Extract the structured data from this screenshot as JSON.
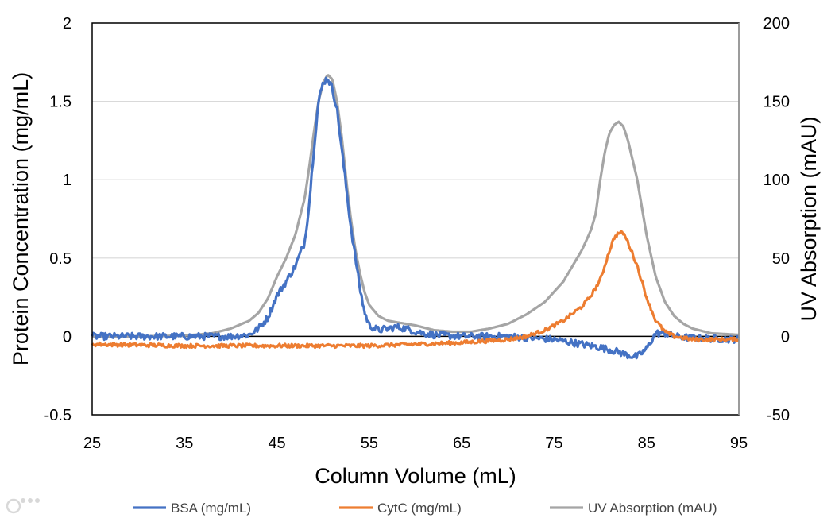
{
  "chart_data": {
    "type": "line",
    "title": "",
    "xlabel": "Column Volume (mL)",
    "ylabel_left": "Protein Concentration (mg/mL)",
    "ylabel_right": "UV Absorption (mAU)",
    "xlim": [
      25,
      95
    ],
    "ylim_left": [
      -0.5,
      2
    ],
    "ylim_right": [
      -50,
      200
    ],
    "x_ticks": [
      "25",
      "35",
      "45",
      "55",
      "65",
      "75",
      "85",
      "95"
    ],
    "y_ticks_left": [
      "2",
      "1.5",
      "1",
      "0.5",
      "0",
      "-0.5"
    ],
    "y_ticks_right": [
      "200",
      "150",
      "100",
      "50",
      "0",
      "-50"
    ],
    "grid": true,
    "legend_position": "bottom",
    "series": [
      {
        "name": "BSA (mg/mL)",
        "axis": "left",
        "color": "#4472C4",
        "x": [
          25,
          30,
          35,
          38,
          40,
          42,
          43,
          44,
          45,
          46,
          47,
          48,
          48.5,
          49,
          49.5,
          50,
          50.5,
          51,
          51.5,
          52,
          52.5,
          53,
          53.5,
          54,
          54.5,
          55,
          56,
          57,
          58,
          59,
          60,
          62,
          65,
          70,
          75,
          78,
          80,
          82,
          83,
          84,
          85,
          86,
          87,
          88,
          90,
          95
        ],
        "values": [
          0,
          0,
          0,
          0,
          0,
          0.01,
          0.05,
          0.12,
          0.26,
          0.35,
          0.45,
          0.6,
          0.85,
          1.2,
          1.5,
          1.62,
          1.65,
          1.58,
          1.45,
          1.2,
          0.95,
          0.7,
          0.5,
          0.3,
          0.15,
          0.07,
          0.04,
          0.05,
          0.06,
          0.05,
          0.03,
          0.01,
          0,
          0,
          -0.02,
          -0.05,
          -0.07,
          -0.1,
          -0.12,
          -0.13,
          -0.08,
          0.02,
          0.02,
          0,
          -0.01,
          -0.02
        ]
      },
      {
        "name": "CytC (mg/mL)",
        "axis": "left",
        "color": "#ED7D31",
        "x": [
          25,
          35,
          45,
          55,
          60,
          65,
          70,
          72,
          74,
          76,
          78,
          79,
          80,
          81,
          81.5,
          82,
          82.5,
          83,
          84,
          85,
          86,
          87,
          88,
          89,
          90,
          92,
          95
        ],
        "values": [
          -0.05,
          -0.06,
          -0.06,
          -0.06,
          -0.05,
          -0.04,
          -0.02,
          0,
          0.04,
          0.1,
          0.19,
          0.26,
          0.36,
          0.55,
          0.63,
          0.66,
          0.66,
          0.6,
          0.45,
          0.25,
          0.1,
          0.03,
          0,
          -0.01,
          -0.02,
          -0.02,
          -0.02
        ]
      },
      {
        "name": "UV Absorption (mAU)",
        "axis": "right",
        "color": "#A5A5A5",
        "x": [
          25,
          30,
          35,
          38,
          40,
          42,
          43,
          44,
          45,
          46,
          47,
          48,
          48.5,
          49,
          49.5,
          50,
          50.5,
          51,
          51.5,
          52,
          52.5,
          53,
          53.5,
          54,
          54.5,
          55,
          56,
          57,
          58,
          59,
          60,
          62,
          64,
          66,
          68,
          70,
          72,
          74,
          76,
          78,
          79,
          79.5,
          80,
          80.5,
          81,
          81.5,
          82,
          82.5,
          83,
          84,
          85,
          86,
          87,
          88,
          89,
          90,
          92,
          95
        ],
        "values": [
          0,
          0,
          0.5,
          2,
          5,
          10,
          15,
          24,
          38,
          50,
          65,
          88,
          108,
          130,
          150,
          162,
          167,
          164,
          150,
          128,
          100,
          75,
          55,
          40,
          28,
          20,
          13,
          10,
          9,
          8,
          7,
          4,
          3,
          3,
          5,
          8,
          14,
          22,
          35,
          55,
          68,
          78,
          100,
          118,
          130,
          135,
          137,
          134,
          125,
          100,
          65,
          38,
          22,
          13,
          8,
          5,
          2,
          1
        ]
      }
    ]
  }
}
